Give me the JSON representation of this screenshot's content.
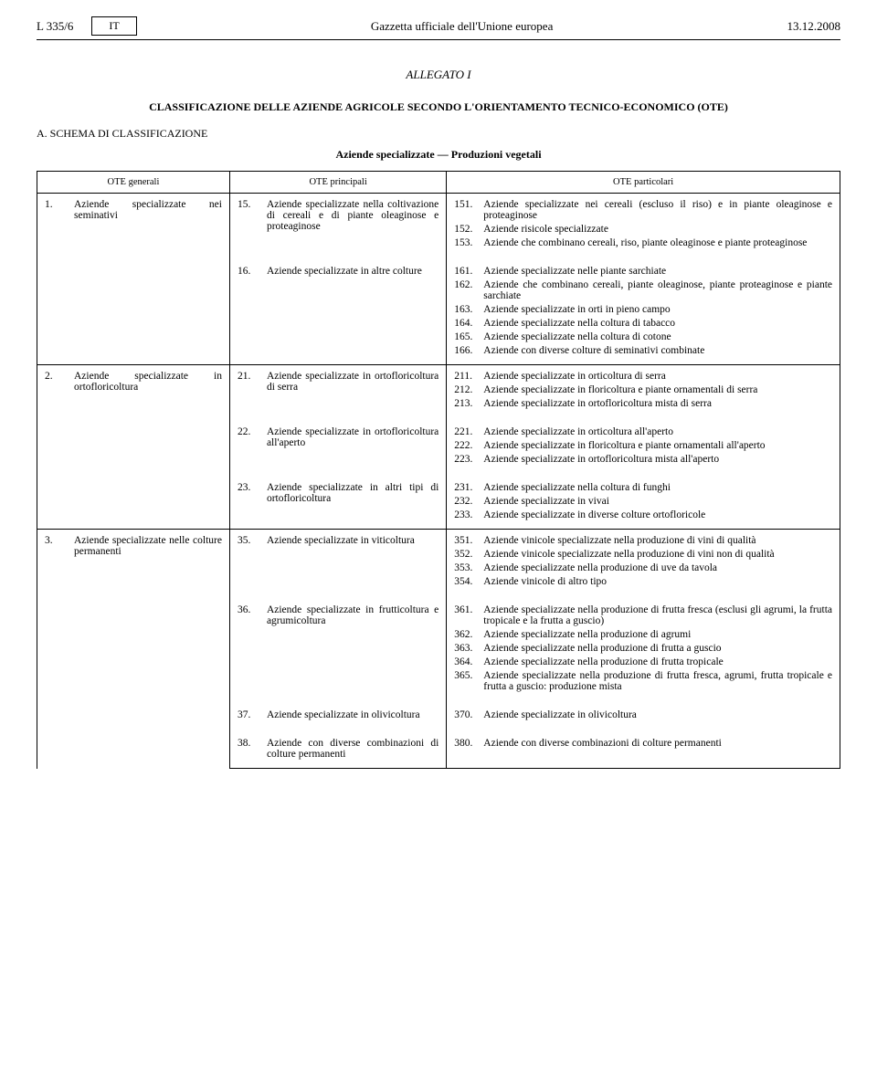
{
  "header": {
    "page_ref": "L 335/6",
    "lang": "IT",
    "journal": "Gazzetta ufficiale dell'Unione europea",
    "date": "13.12.2008"
  },
  "annex": "ALLEGATO I",
  "main_title": "CLASSIFICAZIONE DELLE AZIENDE AGRICOLE SECONDO L'ORIENTAMENTO TECNICO-ECONOMICO (OTE)",
  "section_label": "A. SCHEMA DI CLASSIFICAZIONE",
  "subtitle": "Aziende specializzate — Produzioni vegetali",
  "columns": {
    "col1": "OTE generali",
    "col2": "OTE principali",
    "col3": "OTE particolari"
  },
  "rows": [
    {
      "general": {
        "num": "1.",
        "text": "Aziende specializzate nei seminativi"
      },
      "blocks": [
        {
          "principal": {
            "num": "15.",
            "text": "Aziende specializzate nella coltivazione di cereali e di piante oleaginose e proteaginose"
          },
          "particulars": [
            {
              "num": "151.",
              "text": "Aziende specializzate nei cereali (escluso il riso) e in piante oleaginose e proteaginose"
            },
            {
              "num": "152.",
              "text": "Aziende risicole specializzate"
            },
            {
              "num": "153.",
              "text": "Aziende che combinano cereali, riso, piante oleaginose e piante proteaginose"
            }
          ]
        },
        {
          "principal": {
            "num": "16.",
            "text": "Aziende specializzate in altre colture"
          },
          "particulars": [
            {
              "num": "161.",
              "text": "Aziende specializzate nelle piante sarchiate"
            },
            {
              "num": "162.",
              "text": "Aziende che combinano cereali, piante oleaginose, piante proteaginose e piante sarchiate"
            },
            {
              "num": "163.",
              "text": "Aziende specializzate in orti in pieno campo"
            },
            {
              "num": "164.",
              "text": "Aziende specializzate nella coltura di tabacco"
            },
            {
              "num": "165.",
              "text": "Aziende specializzate nella coltura di cotone"
            },
            {
              "num": "166.",
              "text": "Aziende con diverse colture di seminativi combinate"
            }
          ]
        }
      ]
    },
    {
      "general": {
        "num": "2.",
        "text": "Aziende specializzate in ortofloricoltura"
      },
      "blocks": [
        {
          "principal": {
            "num": "21.",
            "text": "Aziende specializzate in ortofloricoltura di serra"
          },
          "particulars": [
            {
              "num": "211.",
              "text": "Aziende specializzate in orticoltura di serra"
            },
            {
              "num": "212.",
              "text": "Aziende specializzate in floricoltura e piante ornamentali di serra"
            },
            {
              "num": "213.",
              "text": "Aziende specializzate in ortofloricoltura mista di serra"
            }
          ]
        },
        {
          "principal": {
            "num": "22.",
            "text": "Aziende specializzate in ortofloricoltura all'aperto"
          },
          "particulars": [
            {
              "num": "221.",
              "text": "Aziende specializzate in orticoltura all'aperto"
            },
            {
              "num": "222.",
              "text": "Aziende specializzate in floricoltura e piante ornamentali all'aperto"
            },
            {
              "num": "223.",
              "text": "Aziende specializzate in ortofloricoltura mista all'aperto"
            }
          ]
        },
        {
          "principal": {
            "num": "23.",
            "text": "Aziende specializzate in altri tipi di ortofloricoltura"
          },
          "particulars": [
            {
              "num": "231.",
              "text": "Aziende specializzate nella coltura di funghi"
            },
            {
              "num": "232.",
              "text": "Aziende specializzate in vivai"
            },
            {
              "num": "233.",
              "text": "Aziende specializzate in diverse colture ortofloricole"
            }
          ]
        }
      ]
    },
    {
      "general": {
        "num": "3.",
        "text": "Aziende specializzate nelle colture permanenti"
      },
      "blocks": [
        {
          "principal": {
            "num": "35.",
            "text": "Aziende specializzate in viticoltura"
          },
          "particulars": [
            {
              "num": "351.",
              "text": "Aziende vinicole specializzate nella produzione di vini di qualità"
            },
            {
              "num": "352.",
              "text": "Aziende vinicole specializzate nella produzione di vini non di qualità"
            },
            {
              "num": "353.",
              "text": "Aziende specializzate nella produzione di uve da tavola"
            },
            {
              "num": "354.",
              "text": "Aziende vinicole di altro tipo"
            }
          ]
        },
        {
          "principal": {
            "num": "36.",
            "text": "Aziende specializzate in frutticoltura e agrumicoltura"
          },
          "particulars": [
            {
              "num": "361.",
              "text": "Aziende specializzate nella produzione di frutta fresca (esclusi gli agrumi, la frutta tropicale e la frutta a guscio)"
            },
            {
              "num": "362.",
              "text": "Aziende specializzate nella produzione di agrumi"
            },
            {
              "num": "363.",
              "text": "Aziende specializzate nella produzione di frutta a guscio"
            },
            {
              "num": "364.",
              "text": "Aziende specializzate nella produzione di frutta tropicale"
            },
            {
              "num": "365.",
              "text": "Aziende specializzate nella produzione di frutta fresca, agrumi, frutta tropicale e frutta a guscio: produzione mista"
            }
          ]
        },
        {
          "principal": {
            "num": "37.",
            "text": "Aziende specializzate in olivicoltura"
          },
          "particulars": [
            {
              "num": "370.",
              "text": "Aziende specializzate in olivicoltura"
            }
          ]
        },
        {
          "principal": {
            "num": "38.",
            "text": "Aziende con diverse combinazioni di colture permanenti"
          },
          "particulars": [
            {
              "num": "380.",
              "text": "Aziende con diverse combinazioni di colture permanenti"
            }
          ]
        }
      ]
    }
  ]
}
